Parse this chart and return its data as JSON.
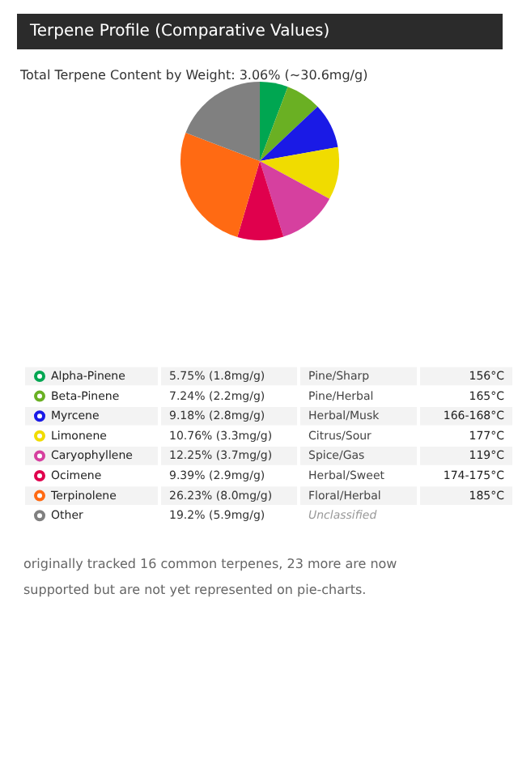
{
  "chart_data": {
    "type": "pie",
    "legend": "bottom",
    "title": "Terpene Profile (Comparative Values)",
    "subtitle": "Total Terpene Content by Weight: 3.06% (~30.6mg/g)",
    "categories": [
      "Alpha-Pinene",
      "Beta-Pinene",
      "Myrcene",
      "Limonene",
      "Caryophyllene",
      "Ocimene",
      "Terpinolene",
      "Other"
    ],
    "values": [
      5.75,
      7.24,
      9.18,
      10.76,
      12.25,
      9.39,
      26.23,
      19.2
    ],
    "colors": [
      "#00a651",
      "#6ab023",
      "#1a1ae6",
      "#f0dc00",
      "#d6409f",
      "#e0004d",
      "#ff6a13",
      "#808080"
    ],
    "value_labels": [
      "5.75% (1.8mg/g)",
      "7.24% (2.2mg/g)",
      "9.18% (2.8mg/g)",
      "10.76% (3.3mg/g)",
      "12.25% (3.7mg/g)",
      "9.39% (2.9mg/g)",
      "26.23% (8.0mg/g)",
      "19.2% (5.9mg/g)"
    ],
    "annotations": [
      "Pine/Sharp",
      "156°C",
      "Pine/Herbal",
      "165°C",
      "Herbal/Musk",
      "166-168°C",
      "Citrus/Sour",
      "177°C",
      "Spice/Gas",
      "119°C",
      "Herbal/Sweet",
      "174-175°C",
      "Floral/Herbal",
      "185°C",
      "Unclassified",
      "originally tracked 16 common terpenes, 23 more are now supported but are not yet represented on pie-charts."
    ]
  }
}
